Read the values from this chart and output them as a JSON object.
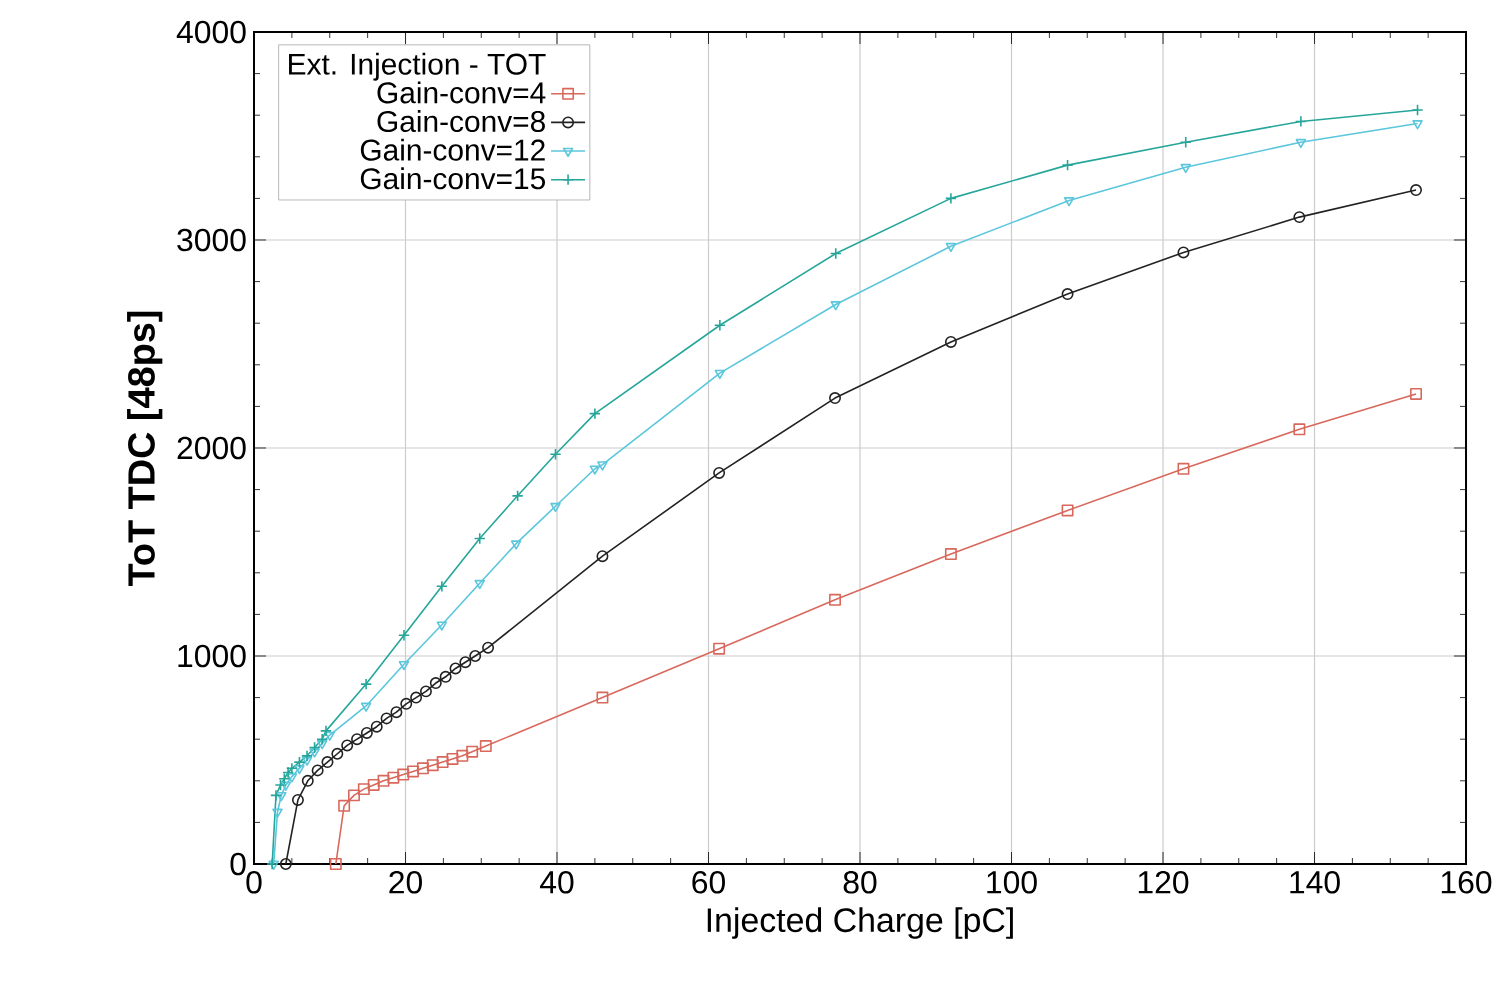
{
  "chart_data": {
    "type": "line",
    "xlabel": "Injected Charge [pC]",
    "ylabel": "ToT TDC [48ps]",
    "legend_title": "Ext. Injection - TOT",
    "legend": "top left",
    "grid": true,
    "xlim": [
      0,
      160
    ],
    "ylim": [
      0,
      4000
    ],
    "xticks": [
      0,
      20,
      40,
      60,
      80,
      100,
      120,
      140,
      160
    ],
    "yticks": [
      0,
      1000,
      2000,
      3000,
      4000
    ],
    "series": [
      {
        "name": "Gain-conv=4",
        "color": "#d9685c",
        "marker": "square",
        "x": [
          10.8,
          11.9,
          13.2,
          14.5,
          15.8,
          17.1,
          18.4,
          19.7,
          21,
          22.3,
          23.6,
          24.9,
          26.2,
          27.5,
          28.8,
          30.6,
          46,
          61.4,
          76.7,
          92,
          107.4,
          122.7,
          138,
          153.4
        ],
        "values": [
          0,
          280,
          330,
          360,
          380,
          400,
          415,
          430,
          445,
          460,
          475,
          490,
          505,
          520,
          540,
          567,
          800,
          1035,
          1270,
          1490,
          1700,
          1900,
          2090,
          2260
        ]
      },
      {
        "name": "Gain-conv=8",
        "color": "#222222",
        "marker": "circle",
        "x": [
          4.2,
          5.8,
          7.1,
          8.4,
          9.7,
          11,
          12.3,
          13.6,
          14.9,
          16.2,
          17.5,
          18.8,
          20.1,
          21.4,
          22.7,
          24,
          25.3,
          26.6,
          27.9,
          29.2,
          30.9,
          46,
          61.4,
          76.7,
          92,
          107.4,
          122.7,
          138,
          153.4
        ],
        "values": [
          0,
          308,
          400,
          450,
          490,
          530,
          570,
          600,
          630,
          660,
          700,
          730,
          770,
          800,
          830,
          870,
          900,
          940,
          970,
          1000,
          1040,
          1480,
          1880,
          2240,
          2510,
          2740,
          2940,
          3110,
          3240
        ]
      },
      {
        "name": "Gain-conv=12",
        "color": "#5bc6dc",
        "marker": "triangle",
        "x": [
          2.6,
          3.1,
          3.6,
          4.2,
          5,
          6,
          7,
          8,
          9,
          10,
          14.8,
          19.8,
          24.8,
          29.8,
          34.6,
          39.8,
          45,
          46,
          61.5,
          76.8,
          92,
          107.6,
          123,
          138.2,
          153.6
        ],
        "values": [
          0,
          250,
          330,
          380,
          420,
          460,
          500,
          540,
          580,
          620,
          760,
          960,
          1150,
          1350,
          1540,
          1720,
          1900,
          1920,
          2360,
          2690,
          2970,
          3190,
          3350,
          3470,
          3560
        ]
      },
      {
        "name": "Gain-conv=15",
        "color": "#26a69a",
        "marker": "cross",
        "x": [
          2.4,
          2.9,
          3.5,
          4,
          4.5,
          5,
          6,
          7,
          8,
          9,
          9.5,
          14.8,
          19.8,
          24.8,
          29.8,
          34.8,
          39.8,
          45,
          61.5,
          76.8,
          92,
          107.4,
          123,
          138.2,
          153.6
        ],
        "values": [
          0,
          330,
          380,
          410,
          440,
          460,
          490,
          520,
          560,
          600,
          640,
          865,
          1100,
          1335,
          1565,
          1770,
          1970,
          2165,
          2590,
          2935,
          3200,
          3360,
          3470,
          3570,
          3625
        ]
      }
    ]
  }
}
